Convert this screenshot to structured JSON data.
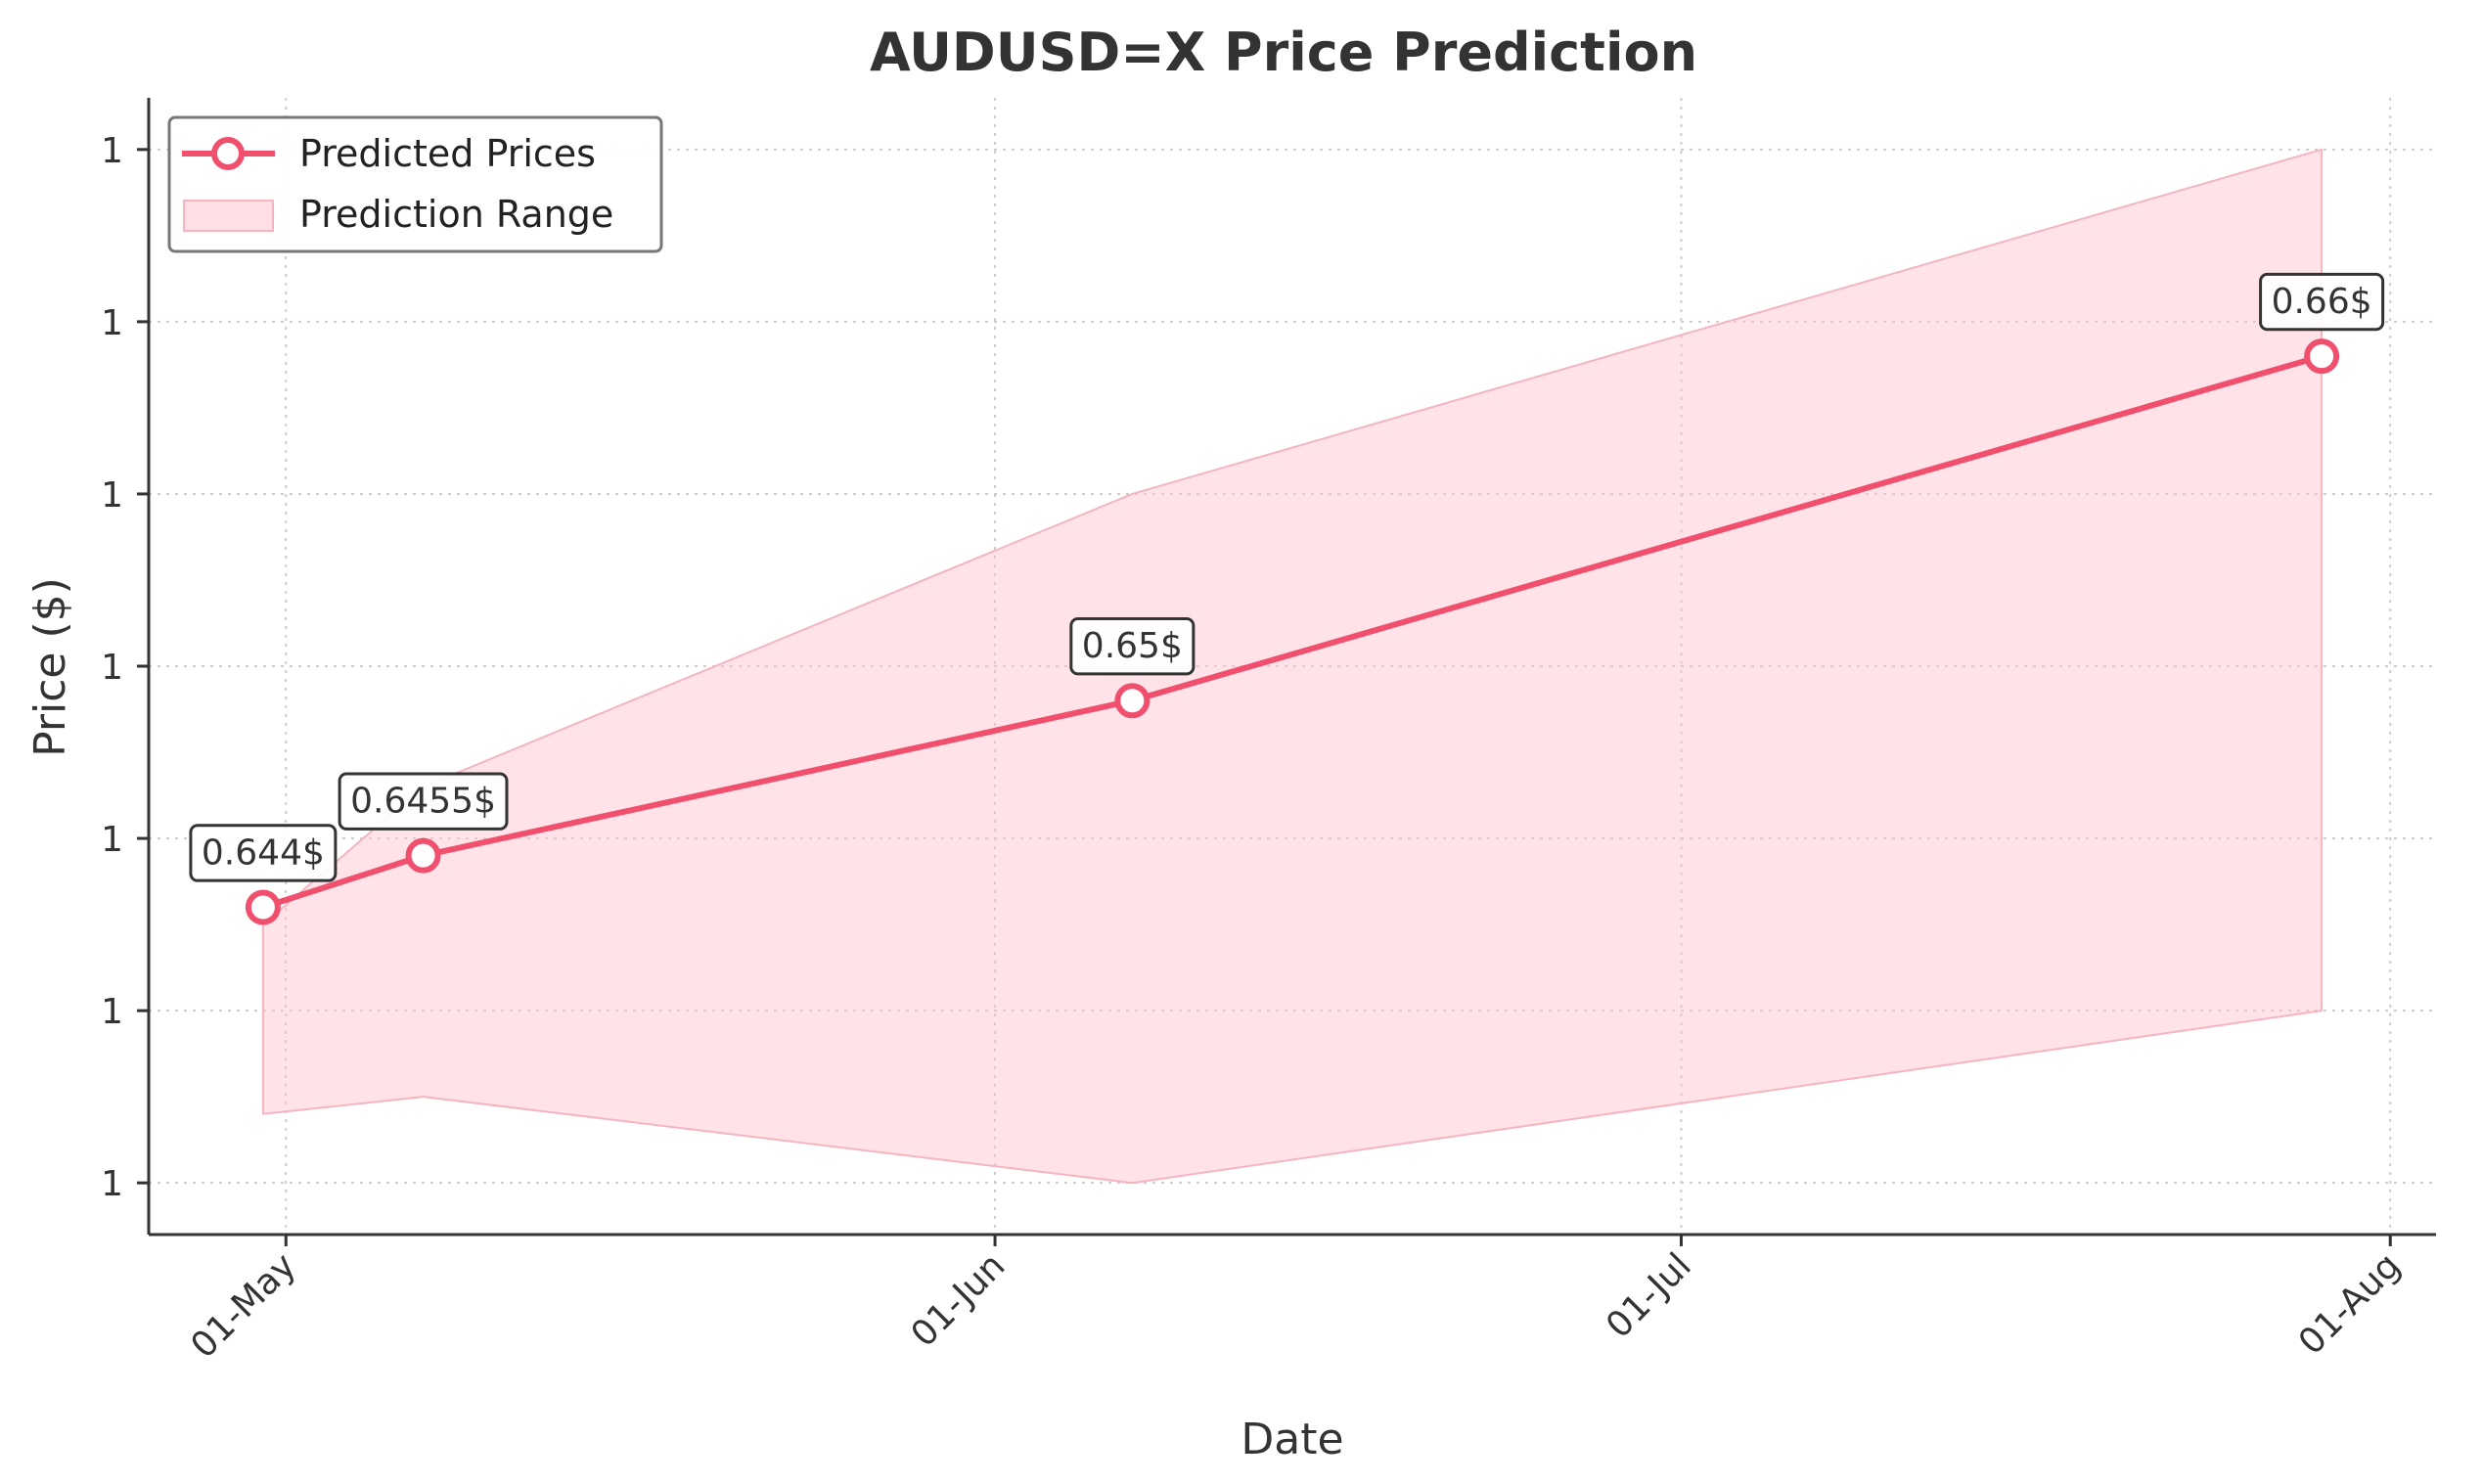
{
  "chart_data": {
    "type": "line",
    "title": "AUDUSD=X Price Prediction",
    "xlabel": "Date",
    "ylabel": "Price ($)",
    "x_tick_labels": [
      "01-May",
      "01-Jun",
      "01-Jul",
      "01-Aug"
    ],
    "x_tick_dates": [
      "2025-05-01",
      "2025-06-01",
      "2025-07-01",
      "2025-08-01"
    ],
    "y_tick_labels": [
      "1",
      "1",
      "1",
      "1",
      "1",
      "1",
      "1"
    ],
    "y_tick_values": [
      0.636,
      0.641,
      0.646,
      0.651,
      0.656,
      0.661,
      0.666
    ],
    "xlim": [
      "2025-04-25",
      "2025-08-03"
    ],
    "ylim": [
      0.6345,
      0.6675
    ],
    "grid": true,
    "legend_position": "top-left",
    "colors": {
      "line": "#f0506e",
      "fill": "#ffc0cb",
      "text": "#333333"
    },
    "series": [
      {
        "name": "Predicted Prices",
        "x": [
          "2025-04-30",
          "2025-05-07",
          "2025-06-07",
          "2025-07-29"
        ],
        "y": [
          0.644,
          0.6455,
          0.65,
          0.66
        ],
        "labels": [
          "0.644$",
          "0.6455$",
          "0.65$",
          "0.66$"
        ]
      }
    ],
    "range": {
      "name": "Prediction Range",
      "x": [
        "2025-04-30",
        "2025-05-07",
        "2025-06-07",
        "2025-07-29"
      ],
      "lower": [
        0.638,
        0.6385,
        0.636,
        0.641
      ],
      "upper": [
        0.6435,
        0.6475,
        0.656,
        0.666
      ]
    }
  }
}
